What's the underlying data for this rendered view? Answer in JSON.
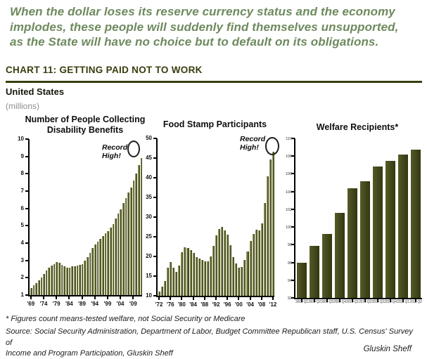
{
  "page": {
    "quote": "When the dollar loses its reserve currency status and the economy\nimplodes, these people will suddenly find themselves unsupported,\nas the State will have no choice but to default on its obligations.",
    "section_title": "CHART 11: GETTING PAID NOT TO WORK",
    "region_label": "United States",
    "units_label": "(millions)",
    "footnote": "* Figures count means-tested welfare, not Social Security or Medicare",
    "source": "Source: Social Security Administration, Department of Labor, Budget Committee Republican staff, U.S. Census' Survey of\nIncome and Program Participation, Gluskin Sheff",
    "attribution": "Gluskin Sheff"
  },
  "colors": {
    "quote_green": "#6e8a5e",
    "heading_olive": "#3a3d0e",
    "bar_olive_light": "#a8ad6e",
    "bar_olive": "#61662e",
    "bar_olive_dark": "#2f3310",
    "axis": "#000000"
  },
  "chart_data": [
    {
      "type": "bar",
      "title": "Number of People Collecting\nDisability Benefits",
      "annotation": "Record\nHigh!",
      "ylim": [
        1,
        10
      ],
      "yticks": [
        1,
        2,
        3,
        4,
        5,
        6,
        7,
        8,
        9,
        10
      ],
      "categories": [
        "1969",
        "1970",
        "1971",
        "1972",
        "1973",
        "1974",
        "1975",
        "1976",
        "1977",
        "1978",
        "1979",
        "1980",
        "1981",
        "1982",
        "1983",
        "1984",
        "1985",
        "1986",
        "1987",
        "1988",
        "1989",
        "1990",
        "1991",
        "1992",
        "1993",
        "1994",
        "1995",
        "1996",
        "1997",
        "1998",
        "1999",
        "2000",
        "2001",
        "2002",
        "2003",
        "2004",
        "2005",
        "2006",
        "2007",
        "2008",
        "2009",
        "2010",
        "2011",
        "2012"
      ],
      "values": [
        1.4,
        1.55,
        1.7,
        1.85,
        2.0,
        2.2,
        2.4,
        2.6,
        2.7,
        2.8,
        2.9,
        2.85,
        2.75,
        2.65,
        2.6,
        2.6,
        2.65,
        2.65,
        2.7,
        2.75,
        2.8,
        3.0,
        3.2,
        3.45,
        3.7,
        3.9,
        4.1,
        4.25,
        4.4,
        4.55,
        4.7,
        4.9,
        5.1,
        5.4,
        5.7,
        5.95,
        6.3,
        6.6,
        6.9,
        7.2,
        7.6,
        8.0,
        8.5,
        8.9
      ],
      "xtick_indices": [
        0,
        5,
        10,
        15,
        20,
        25,
        30,
        35,
        40
      ],
      "xtick_labels": [
        "'69",
        "'74",
        "'79",
        "'84",
        "'89",
        "'94",
        "'99",
        "'04",
        "'09"
      ]
    },
    {
      "type": "bar",
      "title": "Food Stamp Participants",
      "annotation": "Record\nHigh!",
      "ylim": [
        10,
        50
      ],
      "yticks": [
        10,
        15,
        20,
        25,
        30,
        35,
        40,
        45,
        50
      ],
      "categories": [
        "1972",
        "1973",
        "1974",
        "1975",
        "1976",
        "1977",
        "1978",
        "1979",
        "1980",
        "1981",
        "1982",
        "1983",
        "1984",
        "1985",
        "1986",
        "1987",
        "1988",
        "1989",
        "1990",
        "1991",
        "1992",
        "1993",
        "1994",
        "1995",
        "1996",
        "1997",
        "1998",
        "1999",
        "2000",
        "2001",
        "2002",
        "2003",
        "2004",
        "2005",
        "2006",
        "2007",
        "2008",
        "2009",
        "2010",
        "2011",
        "2012"
      ],
      "values": [
        11.0,
        12.3,
        13.7,
        17.1,
        18.5,
        17.1,
        16.0,
        17.7,
        21.1,
        22.4,
        22.1,
        21.6,
        20.9,
        19.9,
        19.4,
        19.1,
        18.7,
        18.8,
        20.0,
        22.6,
        25.4,
        27.0,
        27.5,
        26.6,
        25.5,
        22.9,
        19.8,
        18.2,
        17.2,
        17.4,
        19.1,
        21.3,
        23.9,
        25.7,
        26.7,
        26.6,
        28.4,
        33.5,
        40.3,
        44.7,
        46.6
      ],
      "xtick_indices": [
        0,
        4,
        8,
        12,
        16,
        20,
        24,
        28,
        32,
        36,
        40
      ],
      "xtick_labels": [
        "'72",
        "'76",
        "'80",
        "'84",
        "'88",
        "'92",
        "'96",
        "'00",
        "'04",
        "'08",
        "'12"
      ]
    },
    {
      "type": "bar",
      "title": "Welfare Recipients*",
      "annotation": null,
      "ylim": [
        92,
        110
      ],
      "yticks": [
        92,
        94,
        96,
        98,
        100,
        102,
        104,
        106,
        108,
        110
      ],
      "categories": [
        "2009 Q1",
        "2009 Q2",
        "2009 Q3",
        "2009 Q4",
        "2010 Q1",
        "2010 Q2",
        "2010 Q3",
        "2010 Q4",
        "2011 Q1",
        "2011 Q2"
      ],
      "values": [
        96.0,
        97.9,
        99.2,
        101.6,
        104.4,
        105.2,
        106.8,
        107.5,
        108.2,
        108.7
      ],
      "xtick_indices": [
        0,
        1,
        2,
        3,
        4,
        5,
        6,
        7,
        8,
        9
      ],
      "xtick_labels": [
        "2009 Q1",
        "2009 Q2",
        "2009 Q3",
        "2009 Q4",
        "2010 Q1",
        "2010 Q2",
        "2010 Q3",
        "2010 Q4",
        "2011 Q1",
        "2011 Q2"
      ]
    }
  ]
}
